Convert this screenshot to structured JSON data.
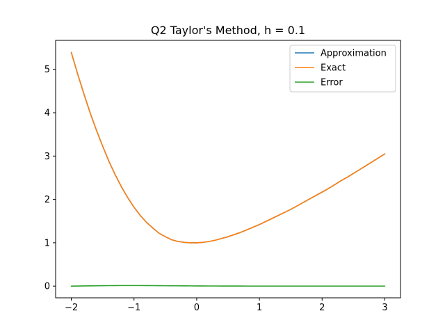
{
  "chart_data": {
    "type": "line",
    "title": "Q2 Taylor's Method, h = 0.1",
    "xlabel": "",
    "ylabel": "",
    "xlim": [
      -2.25,
      3.25
    ],
    "ylim": [
      -0.27,
      5.67
    ],
    "x_ticks": [
      -2,
      -1,
      0,
      1,
      2,
      3
    ],
    "x_tick_labels": [
      "−2",
      "−1",
      "0",
      "1",
      "2",
      "3"
    ],
    "y_ticks": [
      0,
      1,
      2,
      3,
      4,
      5
    ],
    "y_tick_labels": [
      "0",
      "1",
      "2",
      "3",
      "4",
      "5"
    ],
    "grid": false,
    "legend_position": "top-right",
    "x": [
      -2.0,
      -1.9,
      -1.8,
      -1.7,
      -1.6,
      -1.5,
      -1.4,
      -1.3,
      -1.2,
      -1.1,
      -1.0,
      -0.9,
      -0.8,
      -0.7,
      -0.6,
      -0.5,
      -0.4,
      -0.3,
      -0.2,
      -0.1,
      0.0,
      0.1,
      0.2,
      0.3,
      0.4,
      0.5,
      0.6,
      0.7,
      0.8,
      0.9,
      1.0,
      1.1,
      1.2,
      1.3,
      1.4,
      1.5,
      1.6,
      1.7,
      1.8,
      1.9,
      2.0,
      2.1,
      2.2,
      2.3,
      2.4,
      2.5,
      2.6,
      2.7,
      2.8,
      2.9,
      3.0
    ],
    "series": [
      {
        "name": "Approximation",
        "color": "#1f77b4",
        "values": [
          5.39,
          4.9,
          4.44,
          4.0,
          3.6,
          3.23,
          2.88,
          2.57,
          2.29,
          2.04,
          1.82,
          1.63,
          1.47,
          1.34,
          1.22,
          1.14,
          1.07,
          1.03,
          1.01,
          1.0,
          1.0,
          1.01,
          1.03,
          1.06,
          1.1,
          1.14,
          1.19,
          1.24,
          1.3,
          1.36,
          1.42,
          1.49,
          1.56,
          1.63,
          1.7,
          1.77,
          1.85,
          1.93,
          2.01,
          2.09,
          2.17,
          2.25,
          2.34,
          2.43,
          2.51,
          2.6,
          2.69,
          2.78,
          2.87,
          2.96,
          3.05
        ]
      },
      {
        "name": "Exact",
        "color": "#ff7f0e",
        "values": [
          5.39,
          4.9,
          4.44,
          4.0,
          3.6,
          3.23,
          2.88,
          2.57,
          2.29,
          2.04,
          1.82,
          1.63,
          1.47,
          1.34,
          1.22,
          1.14,
          1.07,
          1.03,
          1.01,
          1.0,
          1.0,
          1.01,
          1.03,
          1.06,
          1.1,
          1.14,
          1.19,
          1.24,
          1.3,
          1.36,
          1.42,
          1.49,
          1.56,
          1.63,
          1.7,
          1.77,
          1.85,
          1.93,
          2.01,
          2.09,
          2.17,
          2.25,
          2.34,
          2.43,
          2.51,
          2.6,
          2.69,
          2.78,
          2.87,
          2.96,
          3.05
        ]
      },
      {
        "name": "Error",
        "color": "#2ca02c",
        "values": [
          0.0,
          0.002,
          0.004,
          0.006,
          0.008,
          0.01,
          0.011,
          0.012,
          0.013,
          0.013,
          0.013,
          0.013,
          0.012,
          0.011,
          0.01,
          0.009,
          0.008,
          0.007,
          0.006,
          0.005,
          0.004,
          0.004,
          0.003,
          0.003,
          0.002,
          0.002,
          0.002,
          0.002,
          0.001,
          0.001,
          0.001,
          0.001,
          0.001,
          0.001,
          0.001,
          0.001,
          0.001,
          0.001,
          0.001,
          0.001,
          0.001,
          0.001,
          0.001,
          0.001,
          0.001,
          0.001,
          0.001,
          0.001,
          0.001,
          0.001,
          0.001
        ]
      }
    ]
  }
}
